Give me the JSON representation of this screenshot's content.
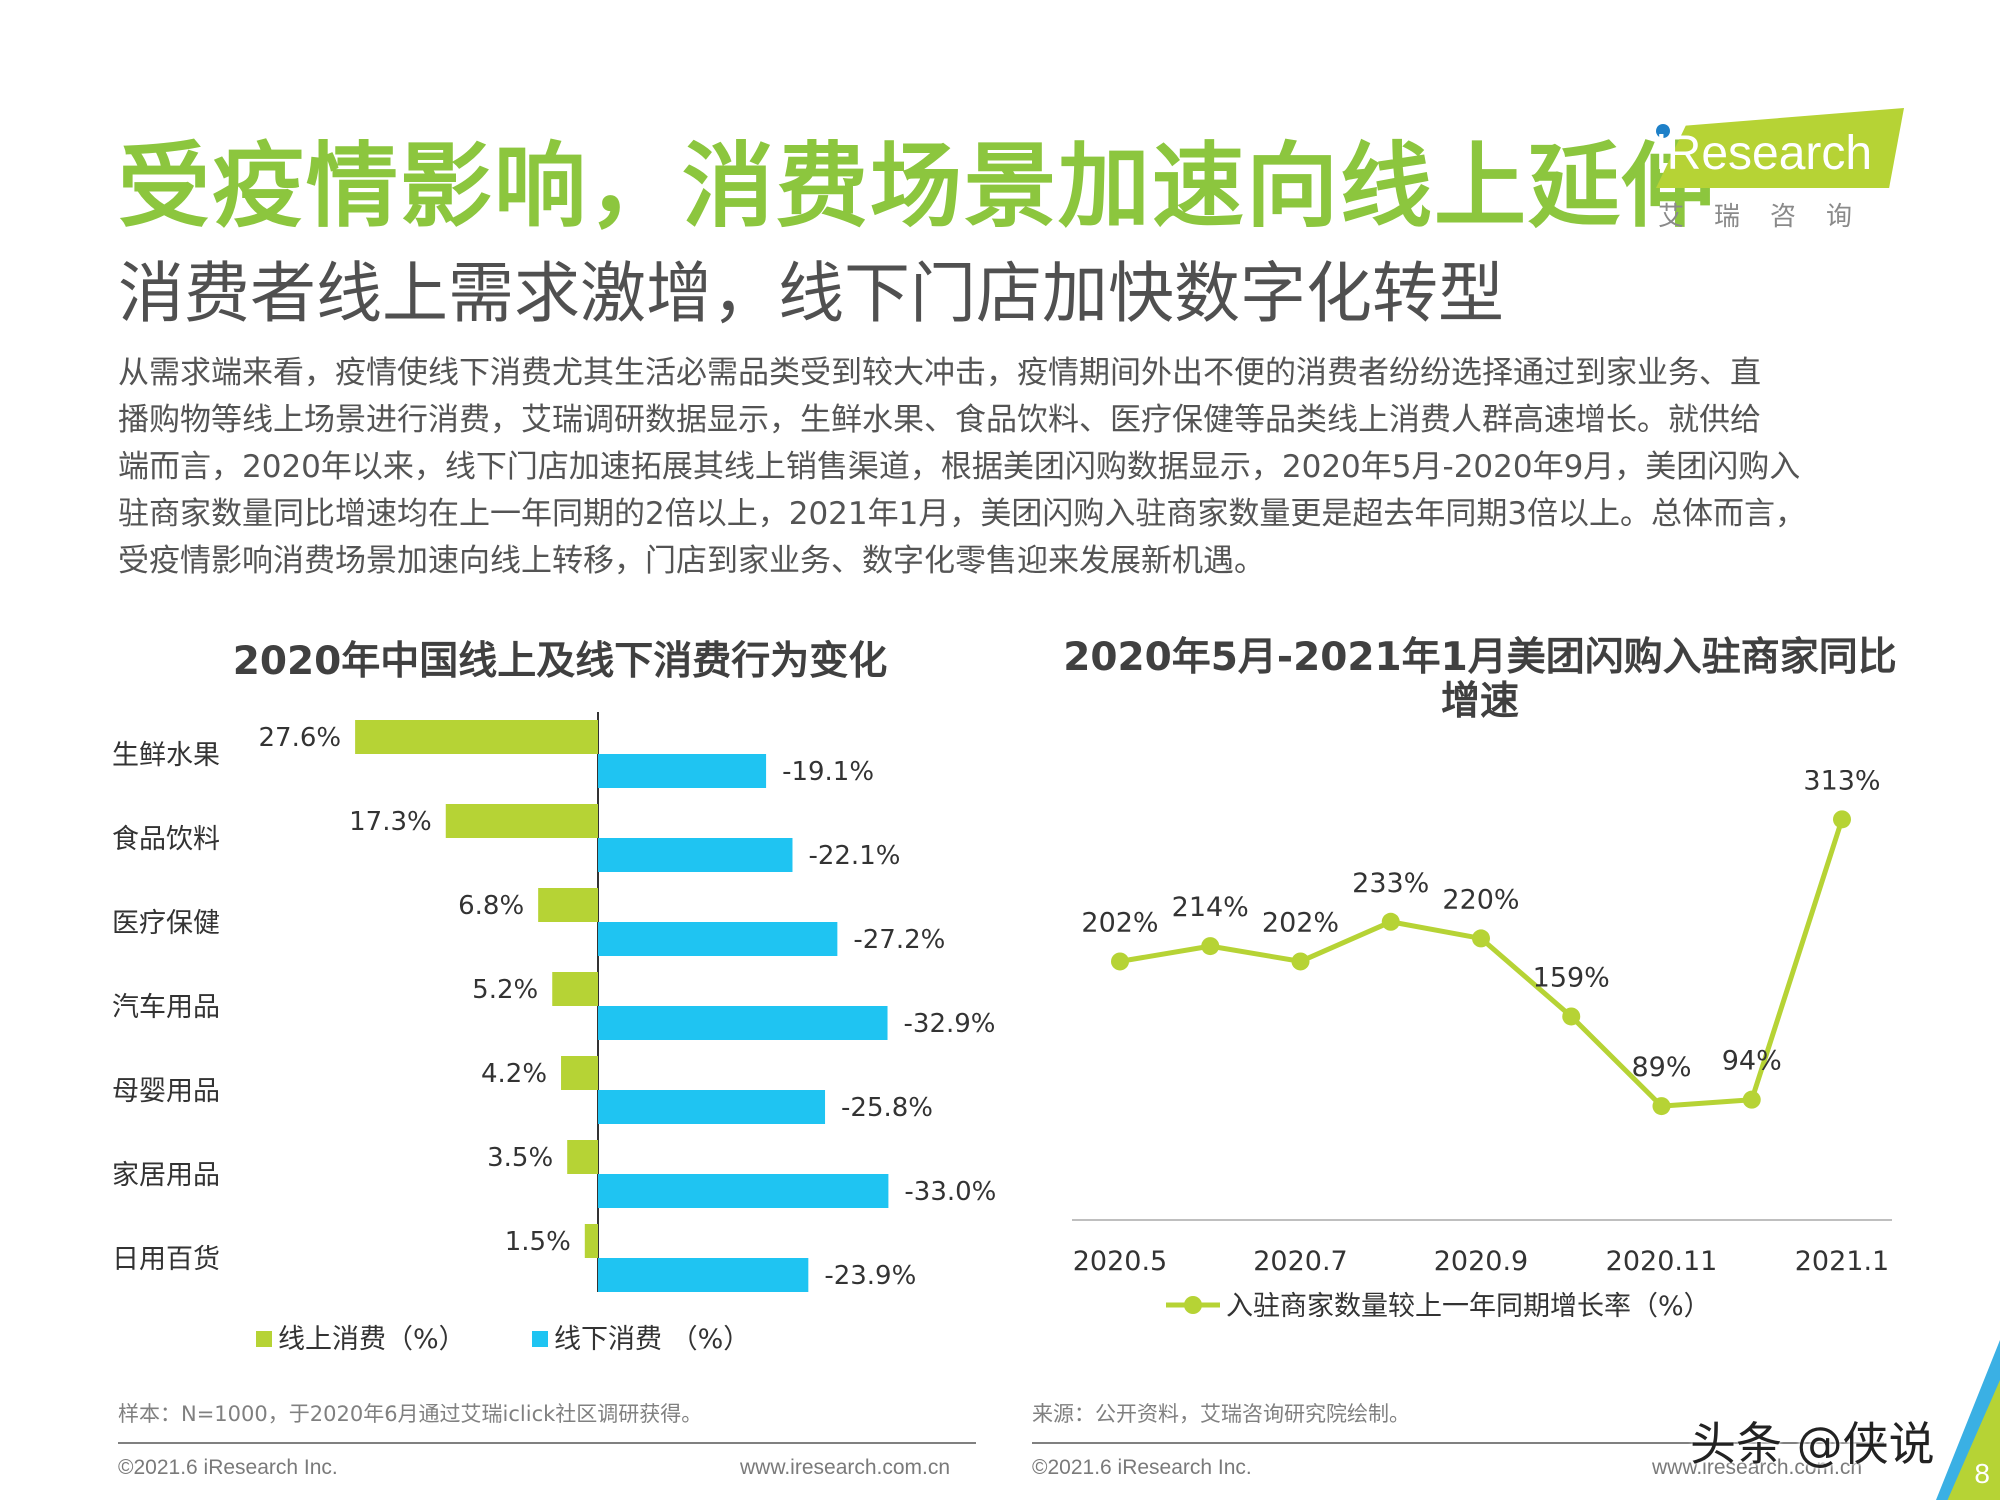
{
  "page": {
    "title": "受疫情影响，消费场景加速向线上延伸",
    "subtitle": "消费者线上需求激增，线下门店加快数字化转型",
    "logo": {
      "brand": "iResearch",
      "sub": "艾瑞咨询"
    },
    "paragraph": [
      "从需求端来看，疫情使线下消费尤其生活必需品类受到较大冲击，疫情期间外出不便的消费者纷纷选择通过到家业务、直",
      "播购物等线上场景进行消费，艾瑞调研数据显示，生鲜水果、食品饮料、医疗保健等品类线上消费人群高速增长。就供给",
      "端而言，2020年以来，线下门店加速拓展其线上销售渠道，根据美团闪购数据显示，2020年5月-2020年9月，美团闪购入",
      "驻商家数量同比增速均在上一年同期的2倍以上，2021年1月，美团闪购入驻商家数量更是超去年同期3倍以上。总体而言，",
      "受疫情影响消费场景加速向线上转移，门店到家业务、数字化零售迎来发展新机遇。"
    ],
    "left_note": "样本：N=1000，于2020年6月通过艾瑞iclick社区调研获得。",
    "right_note": "来源：公开资料，艾瑞咨询研究院绘制。",
    "footer_copyright": "©2021.6 iResearch Inc.",
    "footer_url": "www.iresearch.com.cn",
    "page_number": "8",
    "watermark": "头条 @侠说"
  },
  "colors": {
    "green": "#b6d335",
    "blue": "#1fc4f2",
    "title_green": "#8cc63e"
  },
  "chart_data": [
    {
      "type": "bar",
      "title": "2020年中国线上及线下消费行为变化",
      "categories": [
        "生鲜水果",
        "食品饮料",
        "医疗保健",
        "汽车用品",
        "母婴用品",
        "家居用品",
        "日用百货"
      ],
      "series": [
        {
          "name": "线上消费（%）",
          "values": [
            27.6,
            17.3,
            6.8,
            5.2,
            4.2,
            3.5,
            1.5
          ],
          "labels": [
            "27.6%",
            "17.3%",
            "6.8%",
            "5.2%",
            "4.2%",
            "3.5%",
            "1.5%"
          ]
        },
        {
          "name": "线下消费 （%）",
          "values": [
            -19.1,
            -22.1,
            -27.2,
            -32.9,
            -25.8,
            -33.0,
            -23.9
          ],
          "labels": [
            "-19.1%",
            "-22.1%",
            "-27.2%",
            "-32.9%",
            "-25.8%",
            "-33.0%",
            "-23.9%"
          ]
        }
      ],
      "legend": "bottom"
    },
    {
      "type": "line",
      "title": "2020年5月-2021年1月美团闪购入驻商家同比增速",
      "x": [
        "2020.5",
        "2020.6",
        "2020.7",
        "2020.8",
        "2020.9",
        "2020.10",
        "2020.11",
        "2020.12",
        "2021.1"
      ],
      "x_tick_labels": [
        "2020.5",
        "2020.7",
        "2020.9",
        "2020.11",
        "2021.1"
      ],
      "series": [
        {
          "name": "入驻商家数量较上一年同期增长率（%）",
          "values": [
            202,
            214,
            202,
            233,
            220,
            159,
            89,
            94,
            313
          ],
          "labels": [
            "202%",
            "214%",
            "202%",
            "233%",
            "220%",
            "159%",
            "89%",
            "94%",
            "313%"
          ]
        }
      ],
      "ylim": [
        0,
        350
      ],
      "grid": false,
      "legend": "bottom"
    }
  ]
}
